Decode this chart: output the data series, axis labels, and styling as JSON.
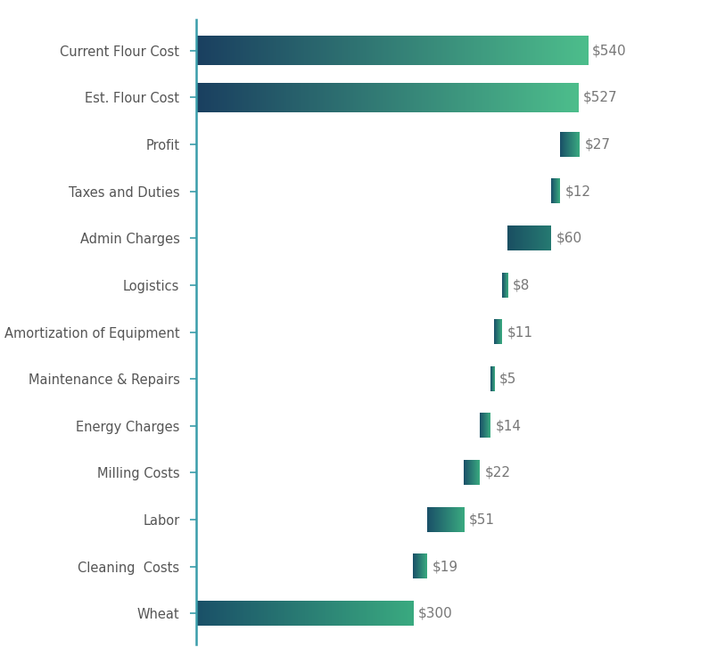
{
  "categories_top_to_bottom": [
    "Current Flour Cost",
    "Est. Flour Cost",
    "Profit",
    "Taxes and Duties",
    "Admin Charges",
    "Logistics",
    "Amortization of Equipment",
    "Maintenance & Repairs",
    "Energy Charges",
    "Milling Costs",
    "Labor",
    "Cleaning  Costs",
    "Wheat"
  ],
  "values_top_to_bottom": [
    540,
    527,
    27,
    12,
    60,
    8,
    11,
    5,
    14,
    22,
    51,
    19,
    300
  ],
  "labels_top_to_bottom": [
    "$540",
    "$527",
    "$27",
    "$12",
    "$60",
    "$8",
    "$11",
    "$5",
    "$14",
    "$22",
    "$51",
    "$19",
    "$300"
  ],
  "bar_height": 0.52,
  "figsize": [
    8.13,
    7.45
  ],
  "dpi": 100,
  "xlim": [
    0,
    600
  ],
  "bg_color": "#ffffff",
  "axis_color": "#3a9daa",
  "color_left_large": "#1a3f60",
  "color_right_large": "#4dbe8c",
  "color_left_small": "#1a5068",
  "color_right_small": "#3aaa80",
  "color_left_admin": "#1a4f62",
  "color_right_admin": "#267a72",
  "label_color": "#777777",
  "ytick_color": "#555555",
  "label_fontsize": 11,
  "ytick_fontsize": 10.5
}
